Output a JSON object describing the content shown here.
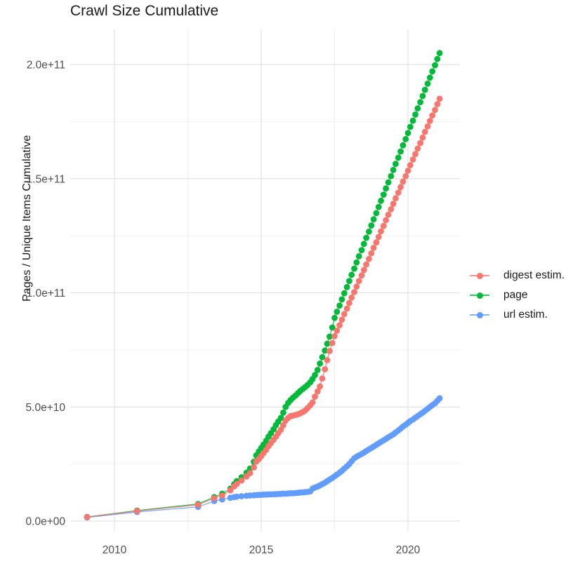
{
  "title": "Crawl Size Cumulative",
  "chart_data": {
    "type": "line",
    "title": "Crawl Size Cumulative",
    "xlabel": "",
    "ylabel": "Pages / Unique Items Cumulative",
    "legend_position": "right",
    "grid": true,
    "value_unit": "1e10 items",
    "xlim": [
      2008.5,
      2021.75
    ],
    "ylim_e10": [
      0,
      21.5
    ],
    "x_ticks": [
      {
        "label": "2010",
        "value": 2010
      },
      {
        "label": "2015",
        "value": 2015
      },
      {
        "label": "2020",
        "value": 2020
      }
    ],
    "y_ticks": [
      {
        "label": "0.0e+00",
        "value": 0
      },
      {
        "label": "5.0e+10",
        "value": 5
      },
      {
        "label": "1.0e+11",
        "value": 10
      },
      {
        "label": "1.5e+11",
        "value": 15
      },
      {
        "label": "2.0e+11",
        "value": 20
      }
    ],
    "grid_minor": {
      "x_minor": [
        2012.5,
        2017.5
      ],
      "y_minor": [
        2.5,
        7.5,
        12.5,
        17.5
      ]
    },
    "series": [
      {
        "id": "digest",
        "name": "digest estim.",
        "color": "#F8766D",
        "points": [
          [
            2009.07,
            0.18
          ],
          [
            2010.77,
            0.44
          ],
          [
            2012.85,
            0.71
          ],
          [
            2013.4,
            1.0
          ],
          [
            2013.67,
            1.12
          ],
          [
            2013.95,
            1.35
          ],
          [
            2014.08,
            1.52
          ],
          [
            2014.17,
            1.63
          ],
          [
            2014.33,
            1.78
          ],
          [
            2014.5,
            1.95
          ],
          [
            2014.62,
            2.1
          ],
          [
            2014.75,
            2.35
          ],
          [
            2014.83,
            2.6
          ],
          [
            2014.92,
            2.72
          ],
          [
            2015.0,
            2.85
          ],
          [
            2015.08,
            2.98
          ],
          [
            2015.17,
            3.12
          ],
          [
            2015.25,
            3.28
          ],
          [
            2015.33,
            3.42
          ],
          [
            2015.42,
            3.56
          ],
          [
            2015.5,
            3.7
          ],
          [
            2015.58,
            3.85
          ],
          [
            2015.67,
            4.0
          ],
          [
            2015.75,
            4.2
          ],
          [
            2015.83,
            4.4
          ],
          [
            2015.92,
            4.52
          ],
          [
            2016.0,
            4.6
          ],
          [
            2016.08,
            4.62
          ],
          [
            2016.17,
            4.65
          ],
          [
            2016.25,
            4.68
          ],
          [
            2016.33,
            4.72
          ],
          [
            2016.42,
            4.78
          ],
          [
            2016.5,
            4.85
          ],
          [
            2016.58,
            4.95
          ],
          [
            2016.67,
            5.07
          ],
          [
            2016.75,
            5.2
          ],
          [
            2016.83,
            5.45
          ],
          [
            2016.92,
            5.68
          ],
          [
            2017.0,
            5.9
          ],
          [
            2017.08,
            6.25
          ],
          [
            2017.17,
            6.65
          ],
          [
            2017.25,
            7.05
          ],
          [
            2017.33,
            7.45
          ],
          [
            2017.42,
            7.8
          ],
          [
            2017.5,
            8.1
          ],
          [
            2017.58,
            8.34
          ],
          [
            2017.67,
            8.58
          ],
          [
            2017.75,
            8.82
          ],
          [
            2017.83,
            9.07
          ],
          [
            2017.92,
            9.31
          ],
          [
            2018.0,
            9.55
          ],
          [
            2018.08,
            9.79
          ],
          [
            2018.17,
            10.03
          ],
          [
            2018.25,
            10.27
          ],
          [
            2018.33,
            10.52
          ],
          [
            2018.42,
            10.76
          ],
          [
            2018.5,
            11.0
          ],
          [
            2018.58,
            11.24
          ],
          [
            2018.67,
            11.48
          ],
          [
            2018.75,
            11.73
          ],
          [
            2018.83,
            11.97
          ],
          [
            2018.92,
            12.21
          ],
          [
            2019.0,
            12.45
          ],
          [
            2019.08,
            12.69
          ],
          [
            2019.17,
            12.93
          ],
          [
            2019.25,
            13.18
          ],
          [
            2019.33,
            13.42
          ],
          [
            2019.42,
            13.66
          ],
          [
            2019.5,
            13.9
          ],
          [
            2019.58,
            14.14
          ],
          [
            2019.67,
            14.39
          ],
          [
            2019.75,
            14.63
          ],
          [
            2019.83,
            14.87
          ],
          [
            2019.92,
            15.11
          ],
          [
            2020.0,
            15.35
          ],
          [
            2020.08,
            15.59
          ],
          [
            2020.17,
            15.84
          ],
          [
            2020.25,
            16.08
          ],
          [
            2020.33,
            16.32
          ],
          [
            2020.42,
            16.56
          ],
          [
            2020.5,
            16.8
          ],
          [
            2020.58,
            17.05
          ],
          [
            2020.67,
            17.29
          ],
          [
            2020.75,
            17.53
          ],
          [
            2020.83,
            17.77
          ],
          [
            2020.92,
            18.01
          ],
          [
            2021.0,
            18.26
          ],
          [
            2021.08,
            18.5
          ]
        ]
      },
      {
        "id": "page",
        "name": "page",
        "color": "#00BA38",
        "points": [
          [
            2009.07,
            0.18
          ],
          [
            2010.77,
            0.46
          ],
          [
            2012.85,
            0.75
          ],
          [
            2013.4,
            1.05
          ],
          [
            2013.67,
            1.2
          ],
          [
            2013.95,
            1.42
          ],
          [
            2014.08,
            1.62
          ],
          [
            2014.17,
            1.75
          ],
          [
            2014.33,
            1.92
          ],
          [
            2014.5,
            2.12
          ],
          [
            2014.62,
            2.3
          ],
          [
            2014.75,
            2.6
          ],
          [
            2014.83,
            2.88
          ],
          [
            2014.92,
            3.05
          ],
          [
            2015.0,
            3.2
          ],
          [
            2015.08,
            3.35
          ],
          [
            2015.17,
            3.52
          ],
          [
            2015.25,
            3.7
          ],
          [
            2015.33,
            3.85
          ],
          [
            2015.42,
            4.02
          ],
          [
            2015.5,
            4.2
          ],
          [
            2015.58,
            4.36
          ],
          [
            2015.67,
            4.52
          ],
          [
            2015.75,
            4.75
          ],
          [
            2015.83,
            5.0
          ],
          [
            2015.92,
            5.18
          ],
          [
            2016.0,
            5.3
          ],
          [
            2016.08,
            5.4
          ],
          [
            2016.17,
            5.5
          ],
          [
            2016.25,
            5.6
          ],
          [
            2016.33,
            5.7
          ],
          [
            2016.42,
            5.79
          ],
          [
            2016.5,
            5.87
          ],
          [
            2016.58,
            5.96
          ],
          [
            2016.67,
            6.08
          ],
          [
            2016.75,
            6.22
          ],
          [
            2016.83,
            6.4
          ],
          [
            2016.92,
            6.62
          ],
          [
            2017.0,
            6.9
          ],
          [
            2017.08,
            7.18
          ],
          [
            2017.17,
            7.47
          ],
          [
            2017.25,
            7.77
          ],
          [
            2017.33,
            8.08
          ],
          [
            2017.42,
            8.48
          ],
          [
            2017.5,
            8.9
          ],
          [
            2017.58,
            9.17
          ],
          [
            2017.67,
            9.44
          ],
          [
            2017.75,
            9.71
          ],
          [
            2017.83,
            9.98
          ],
          [
            2017.92,
            10.25
          ],
          [
            2018.0,
            10.52
          ],
          [
            2018.08,
            10.79
          ],
          [
            2018.17,
            11.06
          ],
          [
            2018.25,
            11.33
          ],
          [
            2018.33,
            11.6
          ],
          [
            2018.42,
            11.87
          ],
          [
            2018.5,
            12.14
          ],
          [
            2018.58,
            12.41
          ],
          [
            2018.67,
            12.68
          ],
          [
            2018.75,
            12.95
          ],
          [
            2018.83,
            13.22
          ],
          [
            2018.92,
            13.49
          ],
          [
            2019.0,
            13.76
          ],
          [
            2019.08,
            14.03
          ],
          [
            2019.17,
            14.3
          ],
          [
            2019.25,
            14.57
          ],
          [
            2019.33,
            14.84
          ],
          [
            2019.42,
            15.11
          ],
          [
            2019.5,
            15.38
          ],
          [
            2019.58,
            15.65
          ],
          [
            2019.67,
            15.92
          ],
          [
            2019.75,
            16.19
          ],
          [
            2019.83,
            16.46
          ],
          [
            2019.92,
            16.73
          ],
          [
            2020.0,
            17.0
          ],
          [
            2020.08,
            17.27
          ],
          [
            2020.17,
            17.54
          ],
          [
            2020.25,
            17.81
          ],
          [
            2020.33,
            18.08
          ],
          [
            2020.42,
            18.35
          ],
          [
            2020.5,
            18.62
          ],
          [
            2020.58,
            18.89
          ],
          [
            2020.67,
            19.16
          ],
          [
            2020.75,
            19.43
          ],
          [
            2020.83,
            19.7
          ],
          [
            2020.92,
            19.97
          ],
          [
            2021.0,
            20.24
          ],
          [
            2021.08,
            20.5
          ]
        ]
      },
      {
        "id": "url",
        "name": "url estim.",
        "color": "#619CFF",
        "points": [
          [
            2009.07,
            0.16
          ],
          [
            2010.77,
            0.4
          ],
          [
            2012.85,
            0.62
          ],
          [
            2013.4,
            0.88
          ],
          [
            2013.67,
            0.95
          ],
          [
            2013.95,
            1.02
          ],
          [
            2014.08,
            1.05
          ],
          [
            2014.17,
            1.07
          ],
          [
            2014.33,
            1.09
          ],
          [
            2014.5,
            1.11
          ],
          [
            2014.62,
            1.12
          ],
          [
            2014.75,
            1.13
          ],
          [
            2014.83,
            1.14
          ],
          [
            2014.92,
            1.15
          ],
          [
            2015.0,
            1.15
          ],
          [
            2015.08,
            1.16
          ],
          [
            2015.17,
            1.16
          ],
          [
            2015.25,
            1.17
          ],
          [
            2015.33,
            1.17
          ],
          [
            2015.42,
            1.18
          ],
          [
            2015.5,
            1.18
          ],
          [
            2015.58,
            1.19
          ],
          [
            2015.67,
            1.19
          ],
          [
            2015.75,
            1.2
          ],
          [
            2015.83,
            1.2
          ],
          [
            2015.92,
            1.21
          ],
          [
            2016.0,
            1.22
          ],
          [
            2016.08,
            1.22
          ],
          [
            2016.17,
            1.23
          ],
          [
            2016.25,
            1.24
          ],
          [
            2016.33,
            1.25
          ],
          [
            2016.42,
            1.26
          ],
          [
            2016.5,
            1.27
          ],
          [
            2016.58,
            1.28
          ],
          [
            2016.67,
            1.3
          ],
          [
            2016.75,
            1.42
          ],
          [
            2016.83,
            1.47
          ],
          [
            2016.92,
            1.51
          ],
          [
            2017.0,
            1.56
          ],
          [
            2017.08,
            1.62
          ],
          [
            2017.17,
            1.68
          ],
          [
            2017.25,
            1.75
          ],
          [
            2017.33,
            1.82
          ],
          [
            2017.42,
            1.89
          ],
          [
            2017.5,
            1.96
          ],
          [
            2017.58,
            2.04
          ],
          [
            2017.67,
            2.12
          ],
          [
            2017.75,
            2.2
          ],
          [
            2017.83,
            2.3
          ],
          [
            2017.92,
            2.4
          ],
          [
            2018.0,
            2.5
          ],
          [
            2018.08,
            2.62
          ],
          [
            2018.17,
            2.75
          ],
          [
            2018.25,
            2.82
          ],
          [
            2018.33,
            2.88
          ],
          [
            2018.42,
            2.94
          ],
          [
            2018.5,
            3.0
          ],
          [
            2018.58,
            3.07
          ],
          [
            2018.67,
            3.14
          ],
          [
            2018.75,
            3.2
          ],
          [
            2018.83,
            3.27
          ],
          [
            2018.92,
            3.34
          ],
          [
            2019.0,
            3.4
          ],
          [
            2019.08,
            3.47
          ],
          [
            2019.17,
            3.54
          ],
          [
            2019.25,
            3.6
          ],
          [
            2019.33,
            3.67
          ],
          [
            2019.42,
            3.74
          ],
          [
            2019.5,
            3.8
          ],
          [
            2019.58,
            3.88
          ],
          [
            2019.67,
            3.97
          ],
          [
            2019.75,
            4.05
          ],
          [
            2019.83,
            4.14
          ],
          [
            2019.92,
            4.22
          ],
          [
            2020.0,
            4.3
          ],
          [
            2020.08,
            4.38
          ],
          [
            2020.17,
            4.45
          ],
          [
            2020.25,
            4.53
          ],
          [
            2020.33,
            4.6
          ],
          [
            2020.42,
            4.68
          ],
          [
            2020.5,
            4.75
          ],
          [
            2020.58,
            4.83
          ],
          [
            2020.67,
            4.92
          ],
          [
            2020.75,
            5.0
          ],
          [
            2020.83,
            5.08
          ],
          [
            2020.92,
            5.16
          ],
          [
            2021.0,
            5.27
          ],
          [
            2021.08,
            5.38
          ]
        ]
      }
    ]
  },
  "colors": {
    "grid_major": "#E3E3E3",
    "grid_minor": "#F1F1F1",
    "tick_label": "#4d4d4d",
    "text": "#1a1a1a"
  }
}
